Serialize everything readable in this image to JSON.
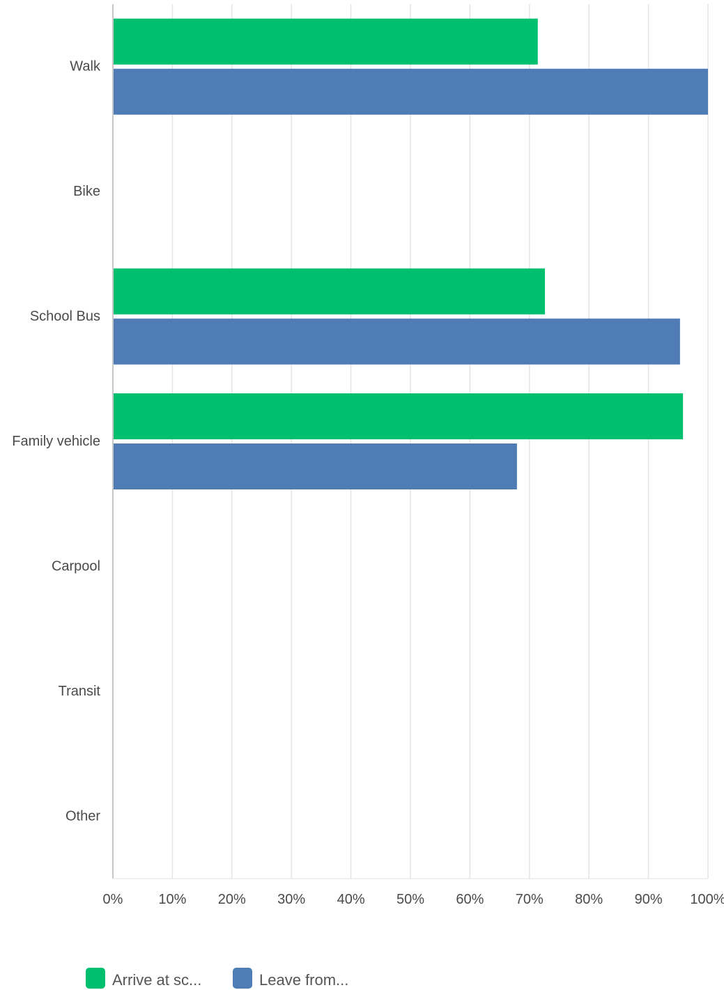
{
  "chart_data": {
    "type": "bar",
    "orientation": "horizontal",
    "categories": [
      "Walk",
      "Bike",
      "School Bus",
      "Family vehicle",
      "Carpool",
      "Transit",
      "Other"
    ],
    "series": [
      {
        "name": "Arrive at sc...",
        "color": "#00bf6f",
        "values": [
          71.4,
          0,
          72.6,
          95.8,
          0,
          0,
          0
        ]
      },
      {
        "name": "Leave from...",
        "color": "#507cb6",
        "values": [
          100,
          0,
          95.3,
          67.9,
          0,
          0,
          0
        ]
      }
    ],
    "x_ticks": [
      "0%",
      "10%",
      "20%",
      "30%",
      "40%",
      "50%",
      "60%",
      "70%",
      "80%",
      "90%",
      "100%"
    ],
    "xlim": [
      0,
      100
    ],
    "grid": true,
    "legend_position": "bottom-left",
    "title": "",
    "xlabel": "",
    "ylabel": ""
  }
}
